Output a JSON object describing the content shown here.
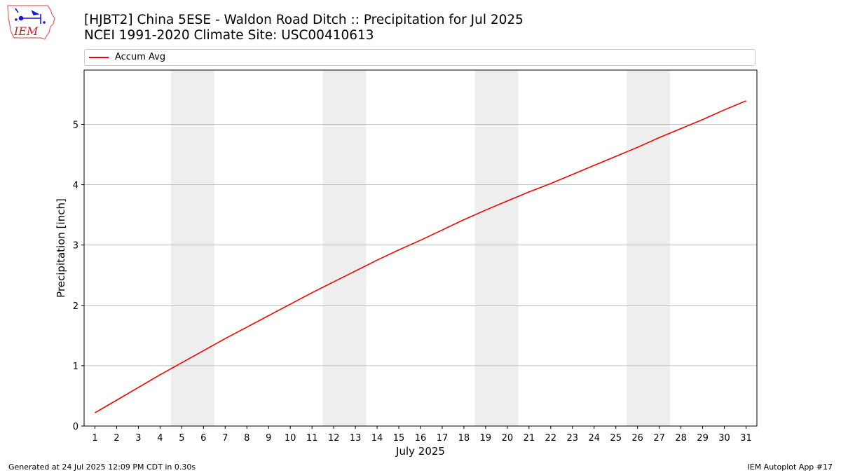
{
  "header": {
    "title_line1": "[HJBT2] China 5ESE - Waldon Road Ditch :: Precipitation for Jul 2025",
    "title_line2": "NCEI 1991-2020 Climate Site: USC00410613",
    "logo_text": "IEM",
    "logo_icon": "iem-weather-station-logo"
  },
  "footer": {
    "generated": "Generated at 24 Jul 2025 12:09 PM CDT in 0.30s",
    "app": "IEM Autoplot App #17"
  },
  "colors": {
    "line": "#ff0000",
    "weekend_band": "#eeeeee",
    "grid": "#b0b0b0"
  },
  "chart_data": {
    "type": "line",
    "xlabel": "July 2025",
    "ylabel": "Precipitation [inch]",
    "xlim": [
      0.5,
      31.5
    ],
    "ylim": [
      0,
      5.9
    ],
    "y_ticks": [
      0,
      1,
      2,
      3,
      4,
      5
    ],
    "x": [
      1,
      2,
      3,
      4,
      5,
      6,
      7,
      8,
      9,
      10,
      11,
      12,
      13,
      14,
      15,
      16,
      17,
      18,
      19,
      20,
      21,
      22,
      23,
      24,
      25,
      26,
      27,
      28,
      29,
      30,
      31
    ],
    "weekend_bands": [
      [
        5,
        6
      ],
      [
        12,
        13
      ],
      [
        19,
        20
      ],
      [
        26,
        27
      ]
    ],
    "grid": "horizontal",
    "legend_position": "top",
    "series": [
      {
        "name": "Accum Avg",
        "values": [
          0.22,
          0.43,
          0.64,
          0.85,
          1.05,
          1.25,
          1.45,
          1.64,
          1.83,
          2.02,
          2.21,
          2.39,
          2.57,
          2.75,
          2.92,
          3.08,
          3.25,
          3.42,
          3.58,
          3.73,
          3.88,
          4.02,
          4.17,
          4.32,
          4.47,
          4.62,
          4.78,
          4.93,
          5.08,
          5.24,
          5.39
        ]
      }
    ]
  }
}
